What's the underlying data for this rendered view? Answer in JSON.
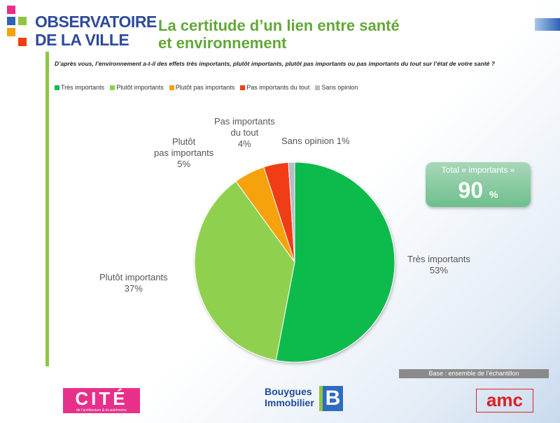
{
  "header": {
    "logo_line1": "OBSERVATOIRE",
    "logo_line2": "DE LA VILLE",
    "title_line1": "La certitude d’un lien entre santé",
    "title_line2": "et environnement"
  },
  "question": "D’après vous, l’environnement a-t-il des effets très importants, plutôt importants, plutôt pas importants ou pas importants du tout sur l’état de votre santé ?",
  "total": {
    "label": "Total « importants »",
    "value": "90",
    "unit": "%"
  },
  "base_note": "Base : ensemble de l’échantillon",
  "footer": {
    "cite_logo": "CITÉ",
    "cite_tagline": "de l’architecture & du patrimoine",
    "bouygues_line1": "Bouygues",
    "bouygues_line2": "Immobilier",
    "bouygues_mark": "B",
    "amc_logo": "amc"
  },
  "chart_data": {
    "type": "pie",
    "title": "La certitude d’un lien entre santé et environnement",
    "series": [
      {
        "name": "Très importants",
        "value": 53,
        "label": "53%",
        "color": "#0dbb4e"
      },
      {
        "name": "Plutôt importants",
        "value": 37,
        "label": "37%",
        "color": "#8fd14f"
      },
      {
        "name": "Plutôt pas importants",
        "value": 5,
        "label": "5%",
        "color": "#f5a20a"
      },
      {
        "name": "Pas importants du tout",
        "value": 4,
        "label": "4%",
        "color": "#f03e12"
      },
      {
        "name": "Sans opinion",
        "value": 1,
        "label": "1%",
        "color": "#b7bcc6"
      }
    ],
    "legend": [
      {
        "label": "Très importants",
        "color": "#0dbb4e"
      },
      {
        "label": "Plutôt importants",
        "color": "#8fd14f"
      },
      {
        "label": "Plutôt pas importants",
        "color": "#f5a20a"
      },
      {
        "label": "Pas importants du tout",
        "color": "#f03e12"
      },
      {
        "label": "Sans opinion",
        "color": "#b7bcc6"
      }
    ],
    "slice_labels": {
      "tres_line1": "Très importants",
      "tres_pct": "53%",
      "plutot_line1": "Plutôt importants",
      "plutot_pct": "37%",
      "ppas_line1": "Plutôt",
      "ppas_line2": "pas importants",
      "ppas_pct": "5%",
      "pas_line1": "Pas importants",
      "pas_line2": "du tout",
      "pas_pct": "4%",
      "sans_line1": "Sans opinion 1%"
    }
  },
  "colors": {
    "brand_blue": "#2e4a9a",
    "brand_green": "#8fc640",
    "title_green": "#62a838"
  }
}
